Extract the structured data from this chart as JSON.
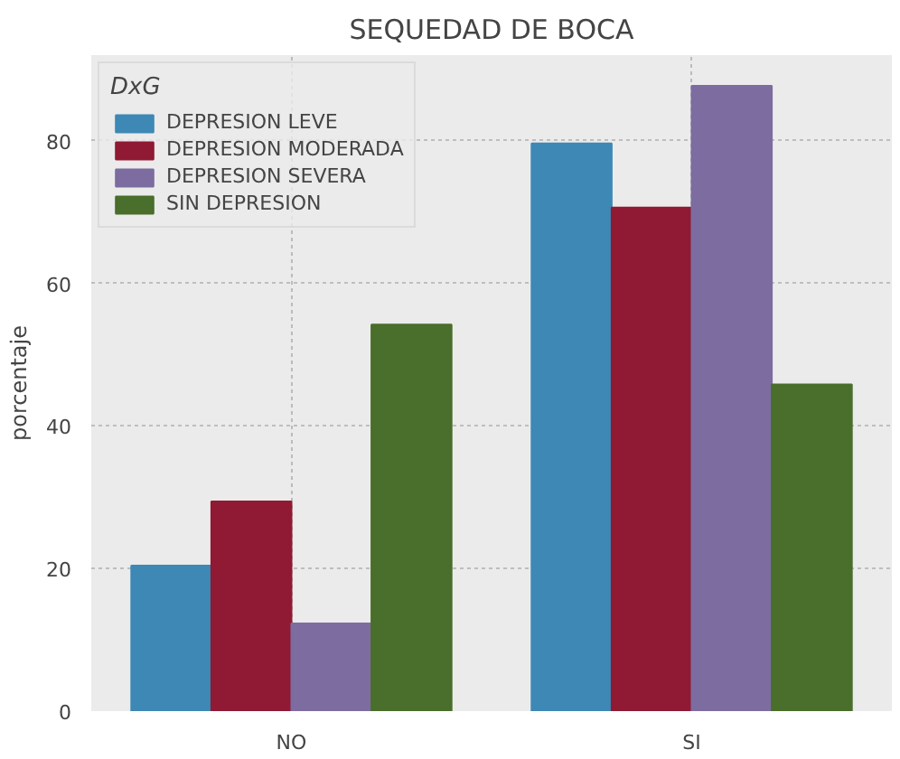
{
  "chart_data": {
    "type": "bar",
    "title": "SEQUEDAD DE BOCA",
    "ylabel": "porcentaje",
    "legend_title": "DxG",
    "categories": [
      "NO",
      "SI"
    ],
    "series": [
      {
        "name": "DEPRESION LEVE",
        "color": "#3d88b5",
        "values": [
          20.4,
          79.6
        ]
      },
      {
        "name": "DEPRESION MODERADA",
        "color": "#901a33",
        "values": [
          29.4,
          70.6
        ]
      },
      {
        "name": "DEPRESION SEVERA",
        "color": "#7d6ca0",
        "values": [
          12.3,
          87.7
        ]
      },
      {
        "name": "SIN DEPRESION",
        "color": "#4a6e2b",
        "values": [
          54.2,
          45.8
        ]
      }
    ],
    "ylim": [
      0,
      92
    ],
    "yticks": [
      0,
      20,
      40,
      60,
      80
    ],
    "grid": true,
    "legend": "top left"
  }
}
